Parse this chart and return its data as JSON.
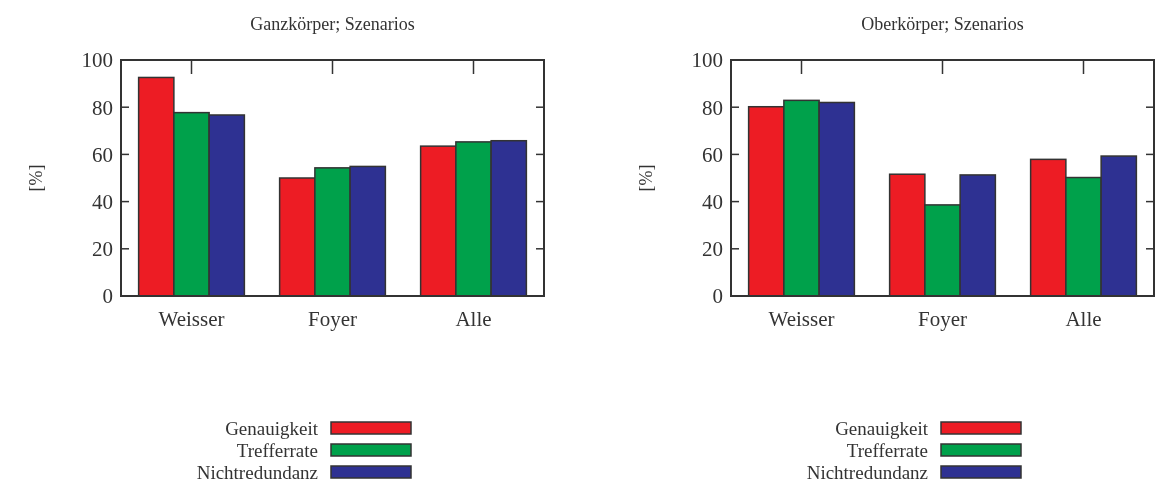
{
  "chart_data": [
    {
      "type": "bar",
      "title": "Ganzkörper; Szenarios",
      "ylabel": "[%]",
      "categories": [
        "Weisser",
        "Foyer",
        "Alle"
      ],
      "ylim": [
        0,
        100
      ],
      "yticks": [
        0,
        20,
        40,
        60,
        80,
        100
      ],
      "legend": "bottom",
      "series": [
        {
          "name": "Genauigkeit",
          "color": "#ed1c24",
          "values": [
            92.6,
            50,
            63.5
          ]
        },
        {
          "name": "Trefferrate",
          "color": "#00a14b",
          "values": [
            77.7,
            54.3,
            65.3
          ]
        },
        {
          "name": "Nichtredundanz",
          "color": "#2e3192",
          "values": [
            76.7,
            54.9,
            65.8
          ]
        }
      ]
    },
    {
      "type": "bar",
      "title": "Oberkörper; Szenarios",
      "ylabel": "[%]",
      "categories": [
        "Weisser",
        "Foyer",
        "Alle"
      ],
      "ylim": [
        0,
        100
      ],
      "yticks": [
        0,
        20,
        40,
        60,
        80,
        100
      ],
      "legend": "bottom",
      "series": [
        {
          "name": "Genauigkeit",
          "color": "#ed1c24",
          "values": [
            80.2,
            51.6,
            57.9
          ]
        },
        {
          "name": "Trefferrate",
          "color": "#00a14b",
          "values": [
            82.9,
            38.6,
            50.2
          ]
        },
        {
          "name": "Nichtredundanz",
          "color": "#2e3192",
          "values": [
            82,
            51.3,
            59.3
          ]
        }
      ]
    }
  ]
}
